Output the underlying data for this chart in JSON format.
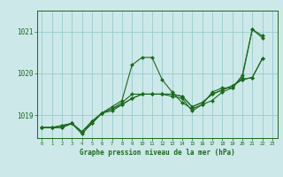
{
  "bg_color": "#cce8e8",
  "grid_color": "#99cccc",
  "line_color": "#1a6b1a",
  "marker_color": "#1a6b1a",
  "title": "Graphe pression niveau de la mer (hPa)",
  "ylabel_ticks": [
    1019,
    1020,
    1021
  ],
  "xlim": [
    -0.5,
    23.5
  ],
  "ylim": [
    1018.45,
    1021.45
  ],
  "series": [
    [
      1018.7,
      1018.7,
      1018.7,
      1018.8,
      1018.6,
      1018.8,
      1019.05,
      1019.2,
      1019.35,
      1020.2,
      1020.38,
      1020.38,
      1019.85,
      1019.55,
      1019.3,
      1019.15,
      1019.25,
      1019.55,
      1019.65,
      1019.65,
      1019.95,
      1021.05,
      1020.9
    ],
    [
      1018.7,
      1018.7,
      1018.75,
      1018.8,
      1018.6,
      1018.85,
      1019.05,
      1019.1,
      1019.25,
      1019.4,
      1019.5,
      1019.5,
      1019.5,
      1019.5,
      1019.45,
      1019.2,
      1019.3,
      1019.5,
      1019.6,
      1019.7,
      1019.85,
      1019.9,
      1020.35
    ],
    [
      1018.7,
      1018.7,
      1018.7,
      1018.8,
      1018.6,
      1018.85,
      1019.05,
      1019.15,
      1019.25,
      1019.4,
      1019.5,
      1019.5,
      1019.5,
      1019.5,
      1019.45,
      1019.2,
      1019.3,
      1019.5,
      1019.6,
      1019.7,
      1019.85,
      1019.9,
      1020.35
    ],
    [
      1018.7,
      1018.7,
      1018.75,
      1018.8,
      1018.55,
      1018.8,
      1019.05,
      1019.15,
      1019.3,
      1019.5,
      1019.5,
      1019.5,
      1019.5,
      1019.45,
      1019.4,
      1019.1,
      1019.25,
      1019.35,
      1019.55,
      1019.65,
      1019.9,
      1021.05,
      1020.85
    ]
  ],
  "x_values": [
    0,
    1,
    2,
    3,
    4,
    5,
    6,
    7,
    8,
    9,
    10,
    11,
    12,
    13,
    14,
    15,
    16,
    17,
    18,
    19,
    20,
    21,
    22
  ]
}
